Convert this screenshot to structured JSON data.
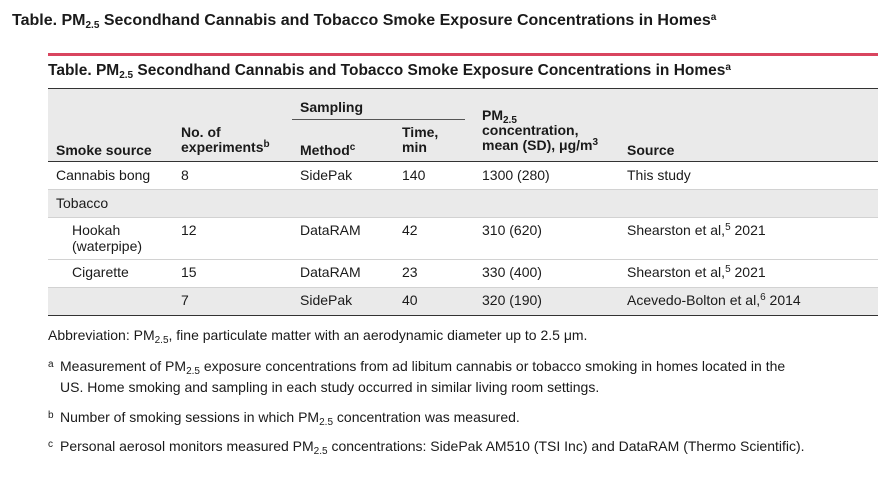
{
  "page_title": {
    "pre": "Table.  PM",
    "sub": "2.5",
    "post": " Secondhand Cannabis and Tobacco Smoke Exposure Concentrations in Homes",
    "sup": "a"
  },
  "table_title": {
    "pre": "Table. PM",
    "sub": "2.5",
    "post": " Secondhand Cannabis and Tobacco Smoke Exposure Concentrations in Homes",
    "sup": "a"
  },
  "header": {
    "sampling": "Sampling",
    "smoke_source": "Smoke source",
    "experiments_l1": "No. of",
    "experiments_l2": "experiments",
    "experiments_sup": "b",
    "method": "Method",
    "method_sup": "c",
    "time_l1": "Time,",
    "time_l2": "min",
    "pm_l1": "PM",
    "pm_l1_sub": "2.5",
    "pm_l2": "concentration,",
    "pm_l3": "mean (SD), μg/m",
    "pm_l3_sup": "3",
    "source": "Source"
  },
  "rows": {
    "cannabis": {
      "source": "Cannabis bong",
      "n": "8",
      "method": "SidePak",
      "time": "140",
      "pm": "1300 (280)",
      "ref": "This study"
    },
    "tobacco": {
      "source": "Tobacco"
    },
    "hookah": {
      "source_l1": "Hookah",
      "source_l2": "(waterpipe)",
      "n": "12",
      "method": "DataRAM",
      "time": "42",
      "pm": "310 (620)",
      "ref_pre": "Shearston et al,",
      "ref_sup": "5",
      "ref_post": " 2021"
    },
    "cigarette": {
      "source": "Cigarette",
      "n": "15",
      "method": "DataRAM",
      "time": "23",
      "pm": "330 (400)",
      "ref_pre": "Shearston et al,",
      "ref_sup": "5",
      "ref_post": " 2021"
    },
    "cigarette2": {
      "n": "7",
      "method": "SidePak",
      "time": "40",
      "pm": "320 (190)",
      "ref_pre": "Acevedo-Bolton et al,",
      "ref_sup": "6",
      "ref_post": " 2014"
    }
  },
  "notes": {
    "abbrev_pre": "Abbreviation: PM",
    "abbrev_sub": "2.5",
    "abbrev_post": ", fine particulate matter with an aerodynamic diameter up to 2.5 μm.",
    "a_mark": "a",
    "a_pre": "Measurement of PM",
    "a_sub": "2.5",
    "a_post": " exposure concentrations from ad libitum cannabis or tobacco smoking in homes located in the",
    "a_line2": "US. Home smoking and sampling in each study occurred in similar living room settings.",
    "b_mark": "b",
    "b_pre": "Number of smoking sessions in which PM",
    "b_sub": "2.5",
    "b_post": " concentration was measured.",
    "c_mark": "c",
    "c_pre": "Personal aerosol monitors measured PM",
    "c_sub": "2.5",
    "c_post": " concentrations: SidePak AM510 (TSI Inc) and DataRAM (Thermo Scientific)."
  },
  "colors": {
    "accent_rule": "#d9455f",
    "header_band": "#eaeaea"
  }
}
